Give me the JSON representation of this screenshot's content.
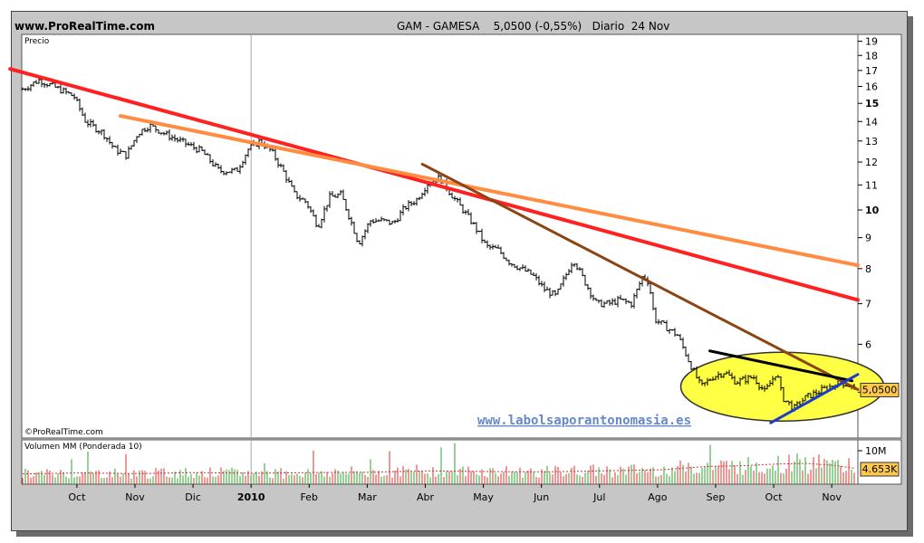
{
  "header": {
    "site": "www.ProRealTime.com",
    "title": "GAM - GAMESA    5,0500 (-0,55%)   Diario  24 Nov"
  },
  "price_panel": {
    "label": "Precio",
    "copyright": "©ProRealTime.com",
    "watermark": "www.labolsaporantonomasia.es",
    "last_price_label": "5,0500"
  },
  "volume_panel": {
    "label": "Volumen MM (Ponderada 10)",
    "last_volume_label": "4.653K",
    "axis_label": "10M"
  },
  "chart_data": [
    {
      "type": "candlestick",
      "title": "GAM - GAMESA    5,0500 (-0,55%)   Diario  24 Nov",
      "scale": "log",
      "ylim": [
        4.2,
        19.5
      ],
      "y_ticks": [
        4,
        5,
        6,
        7,
        8,
        9,
        10,
        11,
        12,
        13,
        14,
        15,
        16,
        17,
        18,
        19
      ],
      "y_tick_labels": [
        "",
        "",
        "6",
        "7",
        "8",
        "9",
        "10",
        "11",
        "12",
        "13",
        "14",
        "15",
        "16",
        "17",
        "18",
        "19"
      ],
      "bold_ticks": [
        10,
        15
      ],
      "x_tick_labels": [
        "Oct",
        "Nov",
        "Dic",
        "2010",
        "Feb",
        "Mar",
        "Abr",
        "May",
        "Jun",
        "Jul",
        "Ago",
        "Sep",
        "Oct",
        "Nov"
      ],
      "x_range_months": [
        0,
        14.4
      ],
      "x_tick_months": [
        0.95,
        1.95,
        2.95,
        3.95,
        4.95,
        5.95,
        6.95,
        7.95,
        8.95,
        9.95,
        10.95,
        11.95,
        12.95,
        13.95
      ],
      "year_separator_month": 3.95,
      "close_path": [
        [
          0.0,
          15.8
        ],
        [
          0.3,
          16.4
        ],
        [
          0.6,
          15.9
        ],
        [
          0.9,
          15.4
        ],
        [
          1.1,
          14.0
        ],
        [
          1.4,
          13.4
        ],
        [
          1.6,
          12.6
        ],
        [
          1.8,
          12.3
        ],
        [
          2.0,
          13.4
        ],
        [
          2.2,
          13.8
        ],
        [
          2.5,
          13.3
        ],
        [
          2.8,
          12.9
        ],
        [
          3.1,
          12.5
        ],
        [
          3.4,
          11.6
        ],
        [
          3.7,
          11.6
        ],
        [
          3.9,
          12.6
        ],
        [
          4.1,
          13.0
        ],
        [
          4.3,
          12.5
        ],
        [
          4.5,
          11.6
        ],
        [
          4.7,
          10.6
        ],
        [
          4.9,
          10.3
        ],
        [
          5.1,
          9.4
        ],
        [
          5.3,
          10.5
        ],
        [
          5.5,
          10.6
        ],
        [
          5.7,
          9.4
        ],
        [
          5.8,
          8.8
        ],
        [
          6.0,
          9.6
        ],
        [
          6.2,
          9.6
        ],
        [
          6.4,
          9.5
        ],
        [
          6.6,
          10.1
        ],
        [
          6.8,
          10.4
        ],
        [
          7.0,
          11.1
        ],
        [
          7.2,
          11.3
        ],
        [
          7.4,
          10.6
        ],
        [
          7.6,
          10.0
        ],
        [
          7.8,
          9.4
        ],
        [
          8.0,
          8.7
        ],
        [
          8.2,
          8.6
        ],
        [
          8.4,
          8.2
        ],
        [
          8.6,
          8.0
        ],
        [
          8.8,
          7.8
        ],
        [
          9.0,
          7.4
        ],
        [
          9.2,
          7.2
        ],
        [
          9.5,
          8.3
        ],
        [
          9.7,
          7.6
        ],
        [
          9.9,
          7.0
        ],
        [
          10.1,
          7.0
        ],
        [
          10.3,
          7.1
        ],
        [
          10.5,
          7.0
        ],
        [
          10.7,
          7.8
        ],
        [
          10.8,
          7.6
        ],
        [
          10.9,
          6.6
        ],
        [
          11.1,
          6.4
        ],
        [
          11.3,
          6.2
        ],
        [
          11.5,
          5.6
        ],
        [
          11.7,
          5.1
        ],
        [
          11.9,
          5.3
        ],
        [
          12.1,
          5.4
        ],
        [
          12.3,
          5.2
        ],
        [
          12.6,
          5.3
        ],
        [
          12.8,
          5.0
        ],
        [
          13.0,
          5.4
        ],
        [
          13.1,
          4.9
        ],
        [
          13.3,
          4.7
        ],
        [
          13.5,
          4.9
        ],
        [
          13.7,
          5.0
        ],
        [
          13.9,
          5.1
        ],
        [
          14.1,
          5.2
        ],
        [
          14.3,
          5.1
        ],
        [
          14.35,
          5.05
        ]
      ],
      "last_price": 5.05
    },
    {
      "type": "trendlines",
      "lines": [
        {
          "color": "#ff2020",
          "from": [
            -0.2,
            17.1
          ],
          "to": [
            14.4,
            7.1
          ]
        },
        {
          "color": "#ff8c40",
          "from": [
            1.7,
            14.3
          ],
          "to": [
            14.4,
            8.1
          ]
        },
        {
          "color": "#8b4513",
          "from": [
            6.9,
            11.9
          ],
          "to": [
            14.4,
            5.05
          ]
        },
        {
          "color": "#000000",
          "from": [
            11.85,
            5.85
          ],
          "to": [
            14.3,
            5.22
          ]
        },
        {
          "color": "#1a3ccf",
          "from": [
            12.9,
            4.45
          ],
          "to": [
            14.4,
            5.35
          ]
        }
      ],
      "highlight_ellipse": {
        "color": "#ffff44",
        "center": [
          13.1,
          5.12
        ],
        "rx_months": 1.75,
        "ry_ratio": [
          5.82,
          4.48
        ]
      }
    },
    {
      "type": "bar",
      "title": "Volumen MM (Ponderada 10)",
      "ylim": [
        0,
        13
      ],
      "y_tick": 10,
      "y_tick_label": "10M",
      "unit": "M",
      "last_value": 4.653,
      "profile": [
        [
          0.0,
          3.0
        ],
        [
          1.0,
          3.3
        ],
        [
          2.0,
          3.1
        ],
        [
          3.0,
          3.4
        ],
        [
          4.0,
          3.2
        ],
        [
          5.0,
          3.4
        ],
        [
          6.0,
          3.5
        ],
        [
          7.0,
          3.9
        ],
        [
          8.0,
          3.7
        ],
        [
          9.0,
          3.6
        ],
        [
          10.0,
          3.9
        ],
        [
          11.0,
          4.2
        ],
        [
          11.8,
          5.2
        ],
        [
          12.4,
          5.4
        ],
        [
          13.0,
          5.9
        ],
        [
          13.5,
          6.1
        ],
        [
          14.0,
          5.5
        ],
        [
          14.35,
          4.65
        ]
      ]
    }
  ]
}
